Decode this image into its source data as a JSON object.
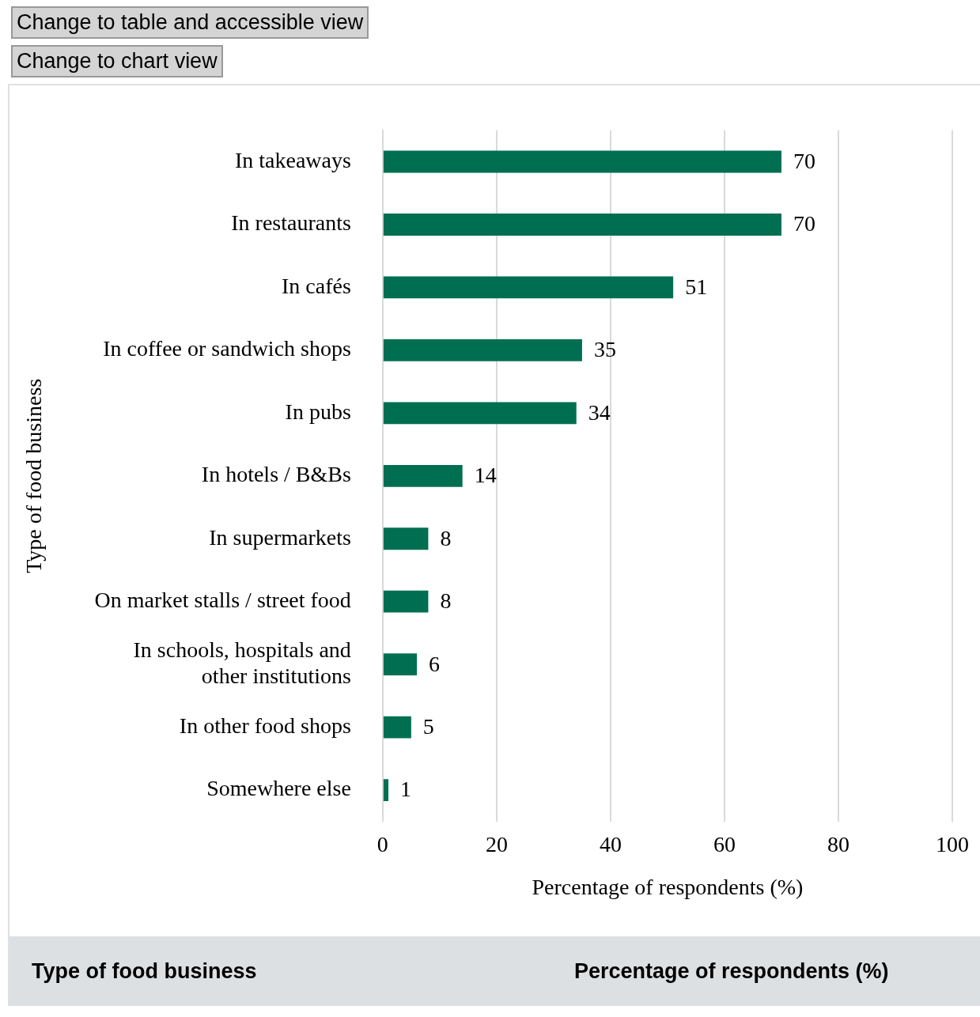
{
  "chart_data": {
    "type": "bar",
    "orientation": "horizontal",
    "annotations": [
      "Change to table and accessible view",
      "Change to chart view"
    ],
    "categories": [
      "In takeaways",
      "In restaurants",
      "In cafés",
      "In coffee or sandwich shops",
      "In pubs",
      "In hotels / B&Bs",
      "In supermarkets",
      "On market stalls / street food",
      "In schools, hospitals and other institutions",
      "In other food shops",
      "Somewhere else"
    ],
    "values": [
      70,
      70,
      51,
      35,
      34,
      14,
      8,
      8,
      6,
      5,
      1
    ],
    "color": "#006f51",
    "xlabel": "Percentage of respondents (%)",
    "ylabel": "Type of food business",
    "xlim": [
      0,
      100
    ],
    "xticks": [
      0,
      20,
      40,
      60,
      80,
      100
    ],
    "grid": "x",
    "data_labels": true,
    "legend": false
  }
}
